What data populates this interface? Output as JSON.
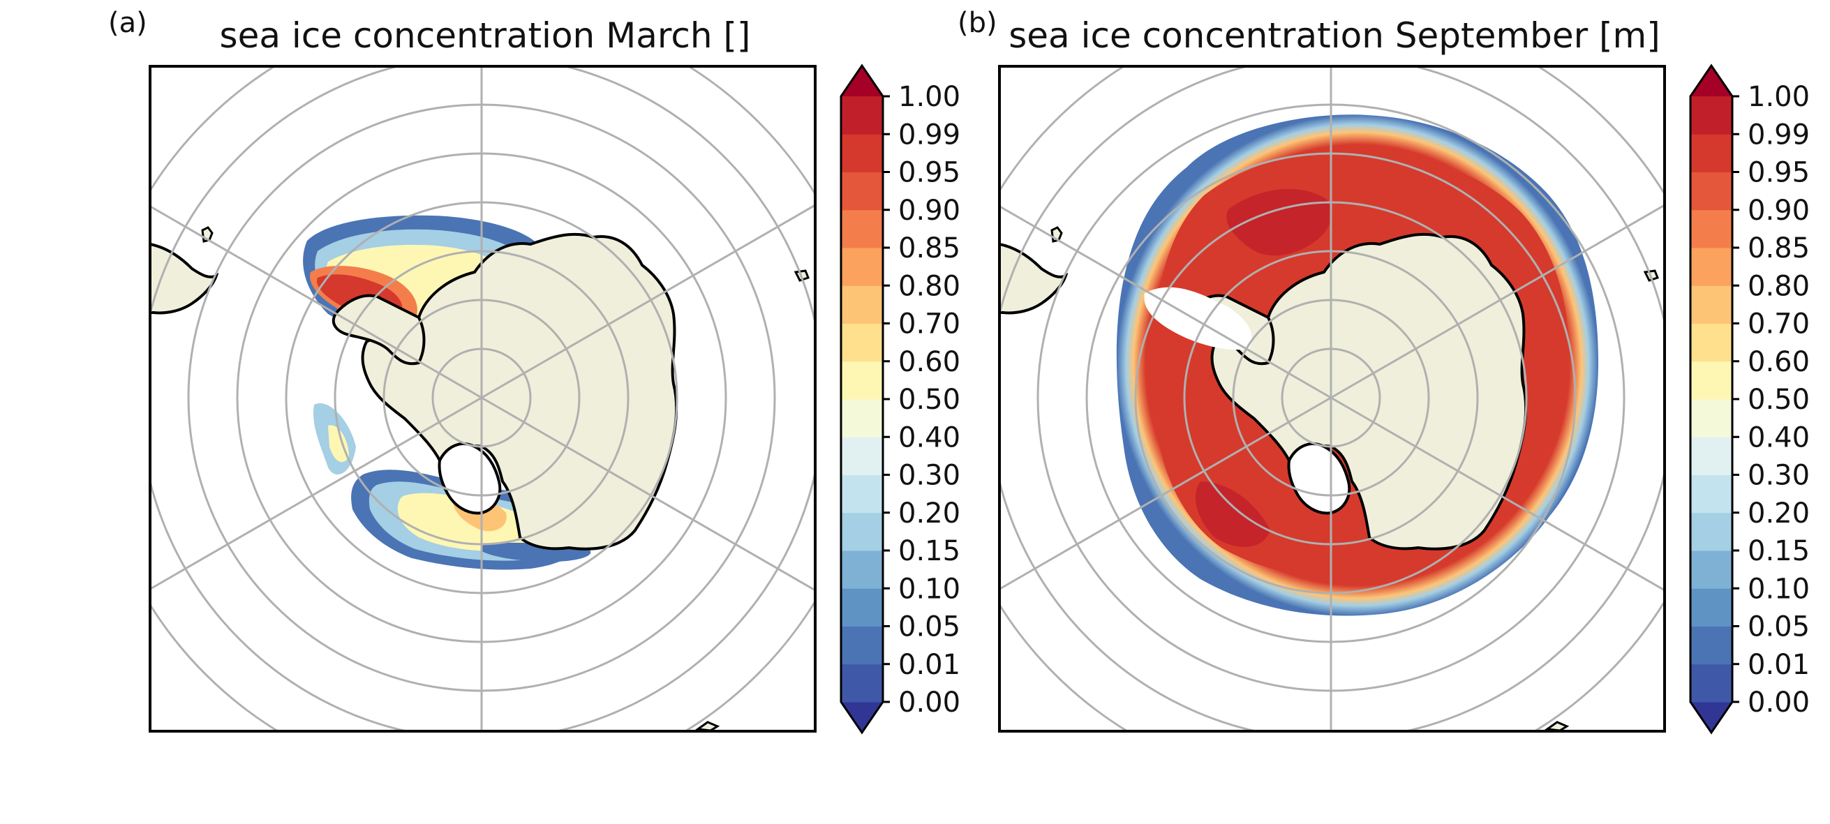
{
  "panels": [
    {
      "letter": "(a)",
      "title": "sea ice concentration March []",
      "month": "March"
    },
    {
      "letter": "(b)",
      "title": "sea ice concentration September [m]",
      "month": "September"
    }
  ],
  "colorbar": {
    "ticks": [
      "1.00",
      "0.99",
      "0.95",
      "0.90",
      "0.85",
      "0.80",
      "0.70",
      "0.60",
      "0.50",
      "0.40",
      "0.30",
      "0.20",
      "0.15",
      "0.10",
      "0.05",
      "0.01",
      "0.00"
    ],
    "colors": [
      "#3f58a8",
      "#4a74b4",
      "#5f93c4",
      "#7fb1d4",
      "#a4cfe4",
      "#c3e3ef",
      "#e1f1f2",
      "#f3f9d9",
      "#fef7b3",
      "#fee08d",
      "#fdc476",
      "#fba25e",
      "#f47e4b",
      "#e5573b",
      "#d5382c",
      "#c11f2a"
    ],
    "under_color": "#313695",
    "over_color": "#a50026",
    "extend": "both"
  },
  "map": {
    "projection": "south-polar-stereographic",
    "land_color": "#efefdb",
    "ice_color": "#d63a2c",
    "grid_color": "#b0b0b0"
  }
}
